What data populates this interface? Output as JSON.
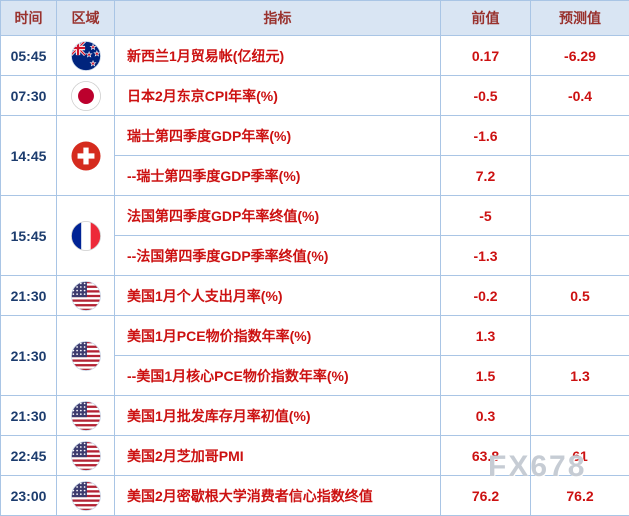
{
  "watermark": "FX678",
  "colors": {
    "header_bg": "#d9e5f3",
    "border": "#a9c5e5",
    "header_text": "#99322e",
    "time_text": "#1c3c6e",
    "value_text": "#cc1111"
  },
  "table": {
    "headers": {
      "time": "时间",
      "region": "区域",
      "indicator": "指标",
      "previous": "前值",
      "forecast": "预测值"
    },
    "groups": [
      {
        "time": "05:45",
        "flag": "new-zealand",
        "rows": [
          {
            "indicator": "新西兰1月贸易帐(亿纽元)",
            "previous": "0.17",
            "forecast": "-6.29"
          }
        ]
      },
      {
        "time": "07:30",
        "flag": "japan",
        "rows": [
          {
            "indicator": "日本2月东京CPI年率(%)",
            "previous": "-0.5",
            "forecast": "-0.4"
          }
        ]
      },
      {
        "time": "14:45",
        "flag": "switzerland",
        "rows": [
          {
            "indicator": "瑞士第四季度GDP年率(%)",
            "previous": "-1.6",
            "forecast": ""
          },
          {
            "indicator": "--瑞士第四季度GDP季率(%)",
            "previous": "7.2",
            "forecast": ""
          }
        ]
      },
      {
        "time": "15:45",
        "flag": "france",
        "rows": [
          {
            "indicator": "法国第四季度GDP年率终值(%)",
            "previous": "-5",
            "forecast": ""
          },
          {
            "indicator": "--法国第四季度GDP季率终值(%)",
            "previous": "-1.3",
            "forecast": ""
          }
        ]
      },
      {
        "time": "21:30",
        "flag": "united-states",
        "rows": [
          {
            "indicator": "美国1月个人支出月率(%)",
            "previous": "-0.2",
            "forecast": "0.5"
          }
        ]
      },
      {
        "time": "21:30",
        "flag": "united-states",
        "rows": [
          {
            "indicator": "美国1月PCE物价指数年率(%)",
            "previous": "1.3",
            "forecast": ""
          },
          {
            "indicator": "--美国1月核心PCE物价指数年率(%)",
            "previous": "1.5",
            "forecast": "1.3"
          }
        ]
      },
      {
        "time": "21:30",
        "flag": "united-states",
        "rows": [
          {
            "indicator": "美国1月批发库存月率初值(%)",
            "previous": "0.3",
            "forecast": ""
          }
        ]
      },
      {
        "time": "22:45",
        "flag": "united-states",
        "rows": [
          {
            "indicator": "美国2月芝加哥PMI",
            "previous": "63.8",
            "forecast": "61"
          }
        ]
      },
      {
        "time": "23:00",
        "flag": "united-states",
        "rows": [
          {
            "indicator": "美国2月密歇根大学消费者信心指数终值",
            "previous": "76.2",
            "forecast": "76.2"
          }
        ]
      }
    ]
  }
}
